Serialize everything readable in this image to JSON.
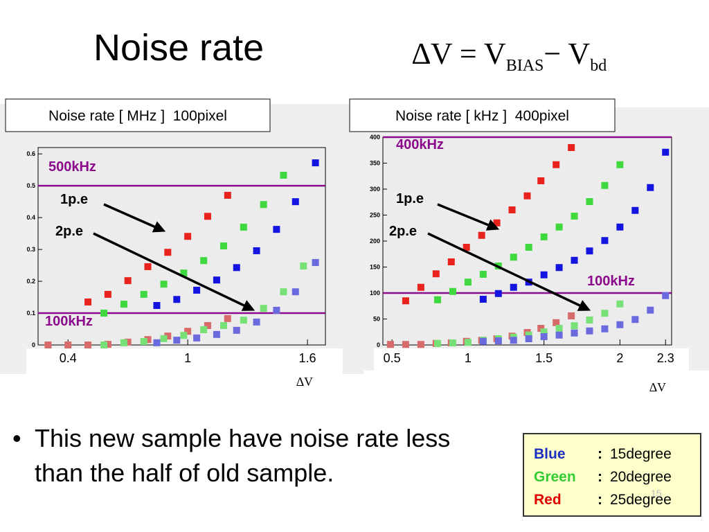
{
  "slide": {
    "title": "Noise rate",
    "formula": [
      "∆V = V",
      "BIAS",
      "− V",
      "bd"
    ],
    "bullet": "This new sample have noise rate less than the half of old sample.",
    "legend": {
      "separator": ":",
      "rows": [
        {
          "name": "Blue",
          "color": "#1a2fbf",
          "desc": "15degree"
        },
        {
          "name": "Green",
          "color": "#33cc33",
          "desc": "20degree"
        },
        {
          "name": "Red",
          "color": "#e00000",
          "desc": "25degree"
        }
      ]
    },
    "page_number": "15"
  },
  "chart_data": [
    {
      "type": "scatter",
      "title": "Noise rate [ MHz ]  100pixel",
      "xlabel": "∆V",
      "xlim": [
        0.25,
        1.69
      ],
      "ylim": [
        0,
        0.62
      ],
      "xticks": [
        0.4,
        1,
        1.6
      ],
      "yticks": [
        0,
        0.1,
        0.2,
        0.3,
        0.4,
        0.5,
        0.6
      ],
      "hlines": [
        {
          "value": 0.5,
          "label": "500kHz",
          "color": "#8b0a8b"
        },
        {
          "value": 0.1,
          "label": "100kHz",
          "color": "#8b0a8b"
        }
      ],
      "annotations": [
        "1p.e",
        "2p.e"
      ],
      "series": [
        {
          "color": "#e8221c",
          "x": [
            0.5,
            0.6,
            0.7,
            0.8,
            0.9,
            1.0,
            1.1,
            1.2
          ],
          "y": [
            0.135,
            0.159,
            0.202,
            0.246,
            0.291,
            0.341,
            0.404,
            0.47
          ]
        },
        {
          "color": "#3fd93f",
          "x": [
            0.58,
            0.68,
            0.78,
            0.88,
            0.98,
            1.08,
            1.18,
            1.28,
            1.38,
            1.48
          ],
          "y": [
            0.1,
            0.128,
            0.159,
            0.191,
            0.226,
            0.265,
            0.311,
            0.37,
            0.441,
            0.533
          ]
        },
        {
          "color": "#1414e0",
          "x": [
            0.845,
            0.945,
            1.045,
            1.145,
            1.245,
            1.345,
            1.445,
            1.54,
            1.64
          ],
          "y": [
            0.124,
            0.143,
            0.172,
            0.204,
            0.243,
            0.296,
            0.363,
            0.45,
            0.572
          ]
        },
        {
          "color": "#d96a6a",
          "x": [
            0.3,
            0.4,
            0.5,
            0.6,
            0.7,
            0.8,
            0.9,
            1.0,
            1.1,
            1.2
          ],
          "y": [
            0,
            0,
            0,
            0.002,
            0.009,
            0.017,
            0.028,
            0.043,
            0.061,
            0.083
          ]
        },
        {
          "color": "#77e077",
          "x": [
            0.58,
            0.68,
            0.78,
            0.88,
            0.98,
            1.08,
            1.18,
            1.28,
            1.38,
            1.48,
            1.58
          ],
          "y": [
            0,
            0.007,
            0.011,
            0.02,
            0.03,
            0.048,
            0.061,
            0.078,
            0.115,
            0.167,
            0.248
          ]
        },
        {
          "color": "#6a6ade",
          "x": [
            0.845,
            0.945,
            1.045,
            1.145,
            1.245,
            1.345,
            1.445,
            1.54,
            1.64
          ],
          "y": [
            0.007,
            0.015,
            0.022,
            0.033,
            0.046,
            0.072,
            0.109,
            0.167,
            0.259
          ]
        }
      ]
    },
    {
      "type": "scatter",
      "title": "Noise rate [ kHz ]  400pixel",
      "xlabel": "∆V",
      "xlim": [
        0.44,
        2.34
      ],
      "ylim": [
        0,
        400
      ],
      "xticks": [
        0.5,
        1,
        1.5,
        2,
        2.3
      ],
      "yticks": [
        0,
        50,
        100,
        150,
        200,
        250,
        300,
        350,
        400
      ],
      "hlines": [
        {
          "value": 400,
          "label": "400kHz",
          "color": "#8b0a8b"
        },
        {
          "value": 100,
          "label": "100kHz",
          "color": "#8b0a8b"
        }
      ],
      "annotations": [
        "1p.e",
        "2p.e"
      ],
      "series": [
        {
          "color": "#e8221c",
          "x": [
            0.59,
            0.69,
            0.79,
            0.89,
            0.99,
            1.09,
            1.19,
            1.29,
            1.39,
            1.48,
            1.58,
            1.68
          ],
          "y": [
            85,
            111,
            137,
            160,
            188,
            211,
            235,
            260,
            287,
            316,
            347,
            380
          ]
        },
        {
          "color": "#3fd93f",
          "x": [
            0.8,
            0.9,
            1.0,
            1.1,
            1.2,
            1.3,
            1.4,
            1.5,
            1.6,
            1.7,
            1.8,
            1.9,
            2.0
          ],
          "y": [
            87,
            103,
            121,
            136,
            152,
            169,
            188,
            208,
            227,
            248,
            276,
            307,
            347
          ]
        },
        {
          "color": "#1414e0",
          "x": [
            1.1,
            1.2,
            1.3,
            1.4,
            1.5,
            1.6,
            1.7,
            1.8,
            1.9,
            2.0,
            2.1,
            2.2,
            2.3
          ],
          "y": [
            88,
            99,
            111,
            121,
            135,
            149,
            163,
            181,
            201,
            227,
            259,
            303,
            371
          ]
        },
        {
          "color": "#d96a6a",
          "x": [
            0.49,
            0.59,
            0.69,
            0.79,
            0.89,
            0.99,
            1.09,
            1.19,
            1.29,
            1.39,
            1.48,
            1.58,
            1.68
          ],
          "y": [
            1,
            1,
            1,
            3,
            4,
            7,
            9,
            12,
            17,
            24,
            32,
            43,
            56
          ]
        },
        {
          "color": "#77e077",
          "x": [
            0.8,
            0.9,
            1.0,
            1.1,
            1.2,
            1.3,
            1.4,
            1.5,
            1.6,
            1.7,
            1.8,
            1.9,
            2.0
          ],
          "y": [
            3,
            4,
            5,
            9,
            12,
            15,
            19,
            25,
            32,
            37,
            48,
            61,
            79
          ]
        },
        {
          "color": "#6a6ade",
          "x": [
            1.1,
            1.2,
            1.3,
            1.4,
            1.5,
            1.6,
            1.7,
            1.8,
            1.9,
            2.0,
            2.1,
            2.2,
            2.3
          ],
          "y": [
            7,
            8,
            9,
            12,
            16,
            19,
            23,
            27,
            31,
            39,
            49,
            67,
            95
          ]
        }
      ]
    }
  ]
}
